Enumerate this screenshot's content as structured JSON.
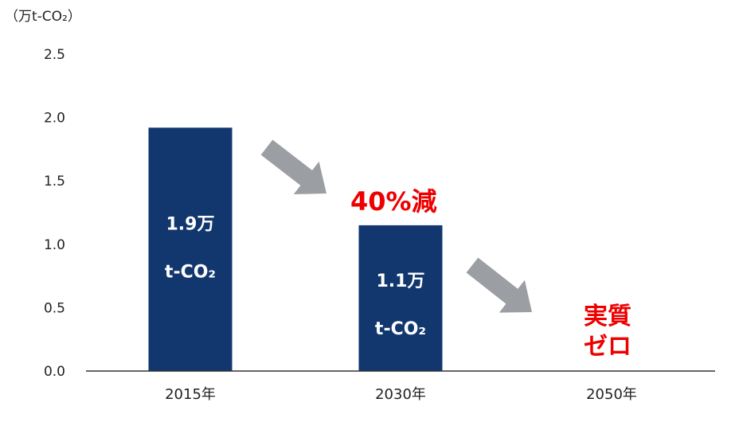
{
  "chart_data": {
    "type": "bar",
    "title": "",
    "unit_label": "（万t-CO₂）",
    "xlabel": "",
    "ylabel": "",
    "ylim": [
      0,
      2.5
    ],
    "yticks": [
      "0.0",
      "0.5",
      "1.0",
      "1.5",
      "2.0",
      "2.5"
    ],
    "categories": [
      "2015年",
      "2030年",
      "2050年"
    ],
    "values": [
      1.92,
      1.15,
      0
    ],
    "bar_labels": [
      {
        "line1": "1.9万",
        "line2": "t-CO₂"
      },
      {
        "line1": "1.1万",
        "line2": "t-CO₂"
      },
      {
        "line1": "",
        "line2": ""
      }
    ],
    "annotations": [
      {
        "text": "40%減",
        "for": "2030年"
      },
      {
        "text": "実質",
        "text2": "ゼロ",
        "for": "2050年"
      }
    ],
    "grid": false,
    "colors": {
      "bar": "#12376e",
      "arrow": "#9b9ea3",
      "annotation": "#ee0000",
      "axis": "#333333"
    }
  }
}
